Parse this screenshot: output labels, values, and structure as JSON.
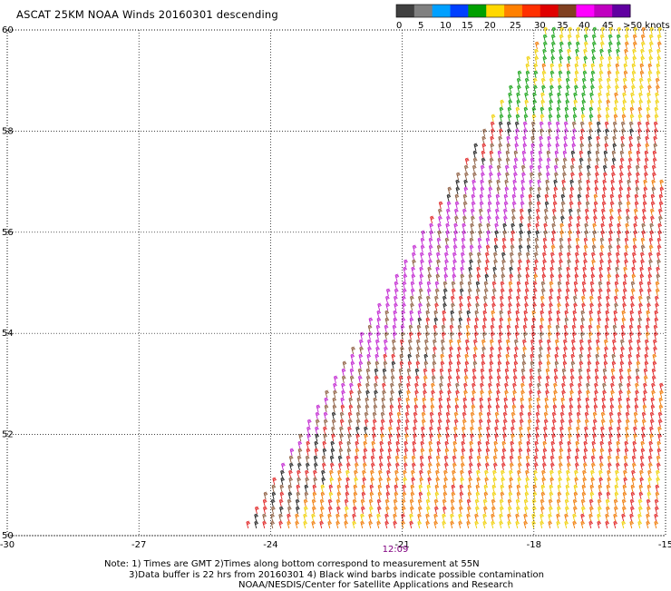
{
  "title": "ASCAT 25KM NOAA Winds 20160301 descending",
  "colorbar": {
    "labels": [
      "0",
      "5",
      "10",
      "15",
      "20",
      "25",
      "30",
      "35",
      "40",
      "45",
      ">50 knots"
    ],
    "colors": [
      "#404040",
      "#808080",
      "#00a0ff",
      "#0040ff",
      "#00a000",
      "#ffd800",
      "#ff8000",
      "#ff3000",
      "#e00000",
      "#804020",
      "#ff00ff",
      "#c000c0",
      "#6000a0"
    ]
  },
  "map": {
    "lon_range": [
      -30,
      -15
    ],
    "lat_range": [
      50,
      60
    ],
    "x_ticks": [
      "-30",
      "-27",
      "-24",
      "-21",
      "-18",
      "-15"
    ],
    "y_ticks": [
      "60",
      "58",
      "56",
      "54",
      "52",
      "50"
    ],
    "grid": "dotted",
    "time_label": "12:09",
    "barb_colors": {
      "green": "#10a010",
      "yellow": "#f0d000",
      "orange": "#f07800",
      "red": "#e02020",
      "brown": "#8b5a3c",
      "black": "#202020",
      "magenta": "#c020d0"
    }
  },
  "notes": [
    "Note: 1) Times are GMT 2)Times along bottom correspond to measurement at 55N",
    "3)Data buffer is 22 hrs from 20160301 4) Black wind barbs indicate possible contamination",
    "NOAA/NESDIS/Center for Satellite Applications and Research"
  ]
}
